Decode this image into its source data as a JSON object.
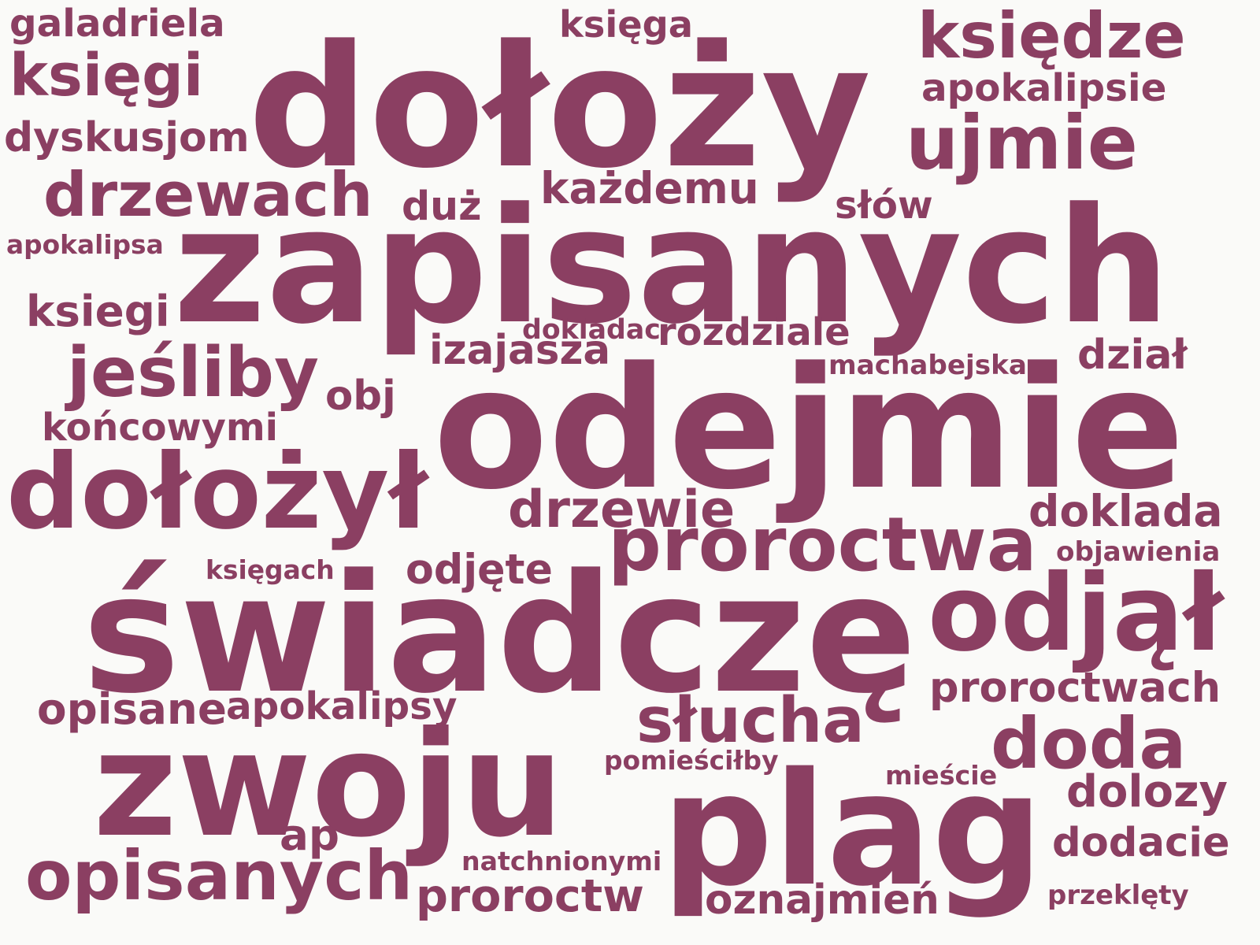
{
  "cloud": {
    "text_color": "#8b3f62",
    "background_color": "#fafaf8",
    "words": [
      {
        "id": "galadriela",
        "text": "galadriela"
      },
      {
        "id": "ksiega",
        "text": "księga"
      },
      {
        "id": "ksiedze",
        "text": "księdze"
      },
      {
        "id": "ksiegi",
        "text": "księgi"
      },
      {
        "id": "dolozy",
        "text": "dołoży"
      },
      {
        "id": "apokalipsie",
        "text": "apokalipsie"
      },
      {
        "id": "dyskusjom",
        "text": "dyskusjom"
      },
      {
        "id": "ujmie",
        "text": "ujmie"
      },
      {
        "id": "drzewach",
        "text": "drzewach"
      },
      {
        "id": "kazdemu",
        "text": "każdemu"
      },
      {
        "id": "duz",
        "text": "duż"
      },
      {
        "id": "slow",
        "text": "słów"
      },
      {
        "id": "apokalipsa",
        "text": "apokalipsa"
      },
      {
        "id": "zapisanych",
        "text": "zapisanych"
      },
      {
        "id": "ksiegi-ascii",
        "text": "ksiegi"
      },
      {
        "id": "dokladac",
        "text": "dokladac"
      },
      {
        "id": "rozdziale",
        "text": "rozdziale"
      },
      {
        "id": "izajasza",
        "text": "izajasza"
      },
      {
        "id": "dzial",
        "text": "dział"
      },
      {
        "id": "jesliby",
        "text": "jeśliby"
      },
      {
        "id": "machabejska",
        "text": "machabejska"
      },
      {
        "id": "obj",
        "text": "obj"
      },
      {
        "id": "koncowymi",
        "text": "końcowymi"
      },
      {
        "id": "odejmie",
        "text": "odejmie"
      },
      {
        "id": "dolozyl",
        "text": "dołożył"
      },
      {
        "id": "drzewie",
        "text": "drzewie"
      },
      {
        "id": "doklada",
        "text": "doklada"
      },
      {
        "id": "proroctwa",
        "text": "proroctwa"
      },
      {
        "id": "objawienia",
        "text": "objawienia"
      },
      {
        "id": "ksiegach",
        "text": "księgach"
      },
      {
        "id": "odjete",
        "text": "odjęte"
      },
      {
        "id": "swiadcze",
        "text": "świadczę"
      },
      {
        "id": "odjal",
        "text": "odjął"
      },
      {
        "id": "proroctwach",
        "text": "proroctwach"
      },
      {
        "id": "opisane",
        "text": "opisane"
      },
      {
        "id": "apokalipsy",
        "text": "apokalipsy"
      },
      {
        "id": "slucha",
        "text": "słucha"
      },
      {
        "id": "doda",
        "text": "doda"
      },
      {
        "id": "zwoju",
        "text": "zwoju"
      },
      {
        "id": "pomiescilby",
        "text": "pomieściłby"
      },
      {
        "id": "miescie",
        "text": "mieście"
      },
      {
        "id": "dolozy-ascii",
        "text": "dolozy"
      },
      {
        "id": "ap",
        "text": "ap"
      },
      {
        "id": "plag",
        "text": "plag"
      },
      {
        "id": "dodacie",
        "text": "dodacie"
      },
      {
        "id": "natchnionymi",
        "text": "natchnionymi"
      },
      {
        "id": "opisanych",
        "text": "opisanych"
      },
      {
        "id": "proroctw",
        "text": "proroctw"
      },
      {
        "id": "oznajmien",
        "text": "oznajmień"
      },
      {
        "id": "przeklety",
        "text": "przeklęty"
      }
    ]
  }
}
